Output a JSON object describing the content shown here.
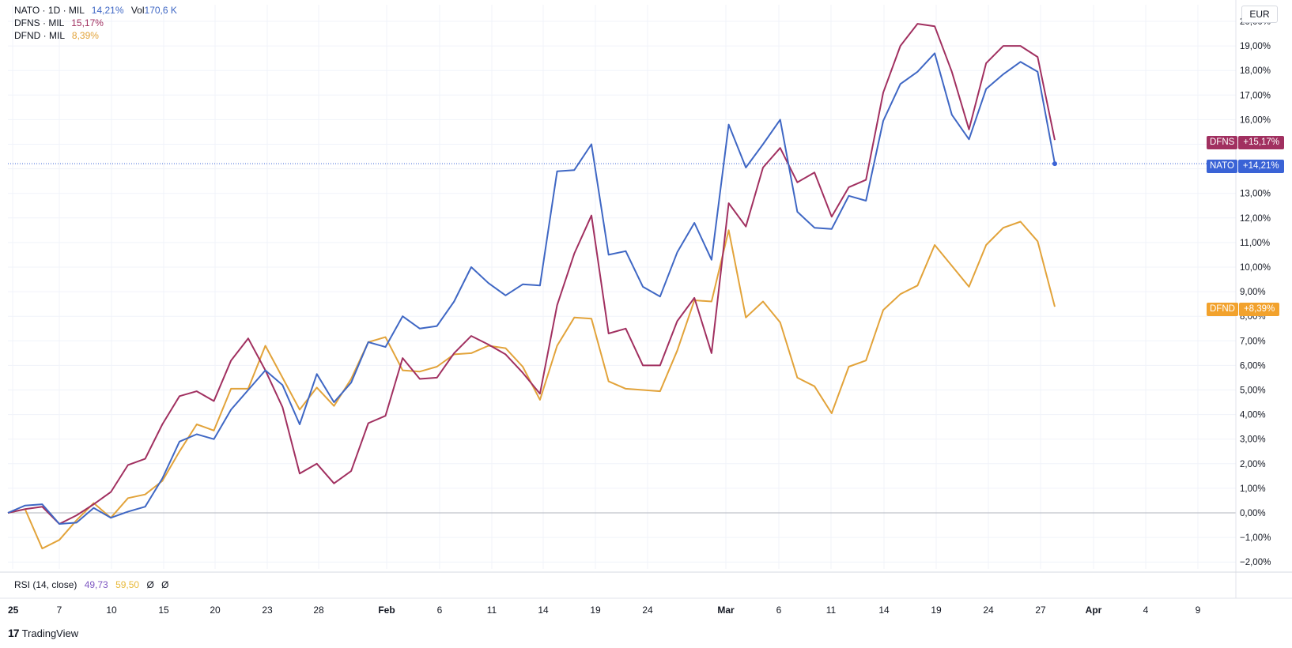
{
  "legend": [
    {
      "symbol": "NATO · 1D · MIL",
      "change": "14,21%",
      "extra_label": "Vol",
      "extra_value": "170,6 K",
      "color": "#3f67c4"
    },
    {
      "symbol": "DFNS · MIL",
      "change": "15,17%",
      "color": "#a13060"
    },
    {
      "symbol": "DFND · MIL",
      "change": "8,39%",
      "color": "#e2a33a"
    }
  ],
  "currency": "EUR",
  "rsi": {
    "label": "RSI (14, close)",
    "value1": "49,73",
    "value2": "59,50",
    "value3": "Ø",
    "value4": "Ø",
    "color1": "#7e57c2",
    "color2": "#e8c54a"
  },
  "price_tags": [
    {
      "name": "DFNS",
      "value": "+15,17%",
      "color": "#a13060"
    },
    {
      "name": "NATO",
      "value": "+14,21%",
      "color": "#3a63d6"
    },
    {
      "name": "DFND",
      "value": "+8,39%",
      "color": "#f2a22d"
    }
  ],
  "brand": "TradingView",
  "chart_data": {
    "type": "line",
    "y_unit": "%",
    "ylim": [
      -2.5,
      20.5
    ],
    "y_ticks": [
      -2,
      -1,
      0,
      1,
      2,
      3,
      4,
      5,
      6,
      7,
      8,
      9,
      10,
      11,
      12,
      13,
      14,
      15,
      16,
      17,
      18,
      19,
      20
    ],
    "y_tick_labels": [
      "−2,00%",
      "−1,00%",
      "0,00%",
      "1,00%",
      "2,00%",
      "3,00%",
      "4,00%",
      "5,00%",
      "6,00%",
      "7,00%",
      "8,00%",
      "9,00%",
      "10,00%",
      "11,00%",
      "12,00%",
      "13,00%",
      "14,00%",
      "15,00%",
      "16,00%",
      "17,00%",
      "18,00%",
      "19,00%",
      "20,00%"
    ],
    "x_ticks": [
      "25",
      "7",
      "10",
      "15",
      "20",
      "23",
      "28",
      "Feb",
      "6",
      "11",
      "14",
      "19",
      "24",
      "Mar",
      "6",
      "11",
      "14",
      "19",
      "24",
      "27",
      "Apr",
      "4",
      "9"
    ],
    "grid": true,
    "baseline": 0,
    "last_value_line": 14.21,
    "series": [
      {
        "name": "NATO",
        "color": "#3f67c4",
        "values": [
          0,
          0.3,
          0.35,
          -0.45,
          -0.4,
          0.2,
          -0.2,
          0.05,
          0.25,
          1.4,
          2.9,
          3.2,
          3.0,
          4.2,
          5.0,
          5.8,
          5.2,
          3.6,
          5.65,
          4.5,
          5.3,
          6.95,
          6.75,
          8.0,
          7.5,
          7.6,
          8.6,
          10.0,
          9.35,
          8.85,
          9.3,
          9.25,
          13.9,
          13.95,
          15.0,
          10.5,
          10.65,
          9.2,
          8.8,
          10.6,
          11.8,
          10.3,
          15.8,
          14.05,
          15.0,
          16.0,
          12.25,
          11.6,
          11.55,
          12.9,
          12.7,
          15.95,
          17.45,
          17.95,
          18.7,
          16.2,
          15.2,
          17.25,
          17.85,
          18.35,
          17.95,
          14.21
        ]
      },
      {
        "name": "DFNS",
        "color": "#a13060",
        "values": [
          0,
          0.15,
          0.25,
          -0.45,
          -0.1,
          0.35,
          0.85,
          1.95,
          2.2,
          3.6,
          4.75,
          4.95,
          4.55,
          6.2,
          7.1,
          5.8,
          4.3,
          1.6,
          2.0,
          1.2,
          1.7,
          3.65,
          3.95,
          6.3,
          5.45,
          5.5,
          6.5,
          7.2,
          6.85,
          6.45,
          5.7,
          4.85,
          8.45,
          10.55,
          12.1,
          7.3,
          7.5,
          6.0,
          6.0,
          7.8,
          8.75,
          6.5,
          12.6,
          11.65,
          14.05,
          14.85,
          13.45,
          13.85,
          12.05,
          13.25,
          13.55,
          17.1,
          19.0,
          19.9,
          19.8,
          17.95,
          15.6,
          18.3,
          19.0,
          19.0,
          18.55,
          15.17
        ]
      },
      {
        "name": "DFND",
        "color": "#e2a33a",
        "values": [
          0,
          0.15,
          -1.45,
          -1.1,
          -0.3,
          0.4,
          -0.2,
          0.6,
          0.75,
          1.3,
          2.5,
          3.6,
          3.35,
          5.05,
          5.05,
          6.8,
          5.5,
          4.2,
          5.1,
          4.35,
          5.45,
          6.95,
          7.15,
          5.8,
          5.75,
          5.95,
          6.45,
          6.5,
          6.8,
          6.7,
          5.95,
          4.6,
          6.8,
          7.95,
          7.9,
          5.35,
          5.05,
          5.0,
          4.95,
          6.6,
          8.65,
          8.6,
          11.5,
          7.95,
          8.6,
          7.75,
          5.5,
          5.15,
          4.05,
          5.95,
          6.2,
          8.25,
          8.9,
          9.25,
          10.9,
          10.05,
          9.2,
          10.9,
          11.6,
          11.85,
          11.05,
          8.39
        ]
      }
    ]
  }
}
